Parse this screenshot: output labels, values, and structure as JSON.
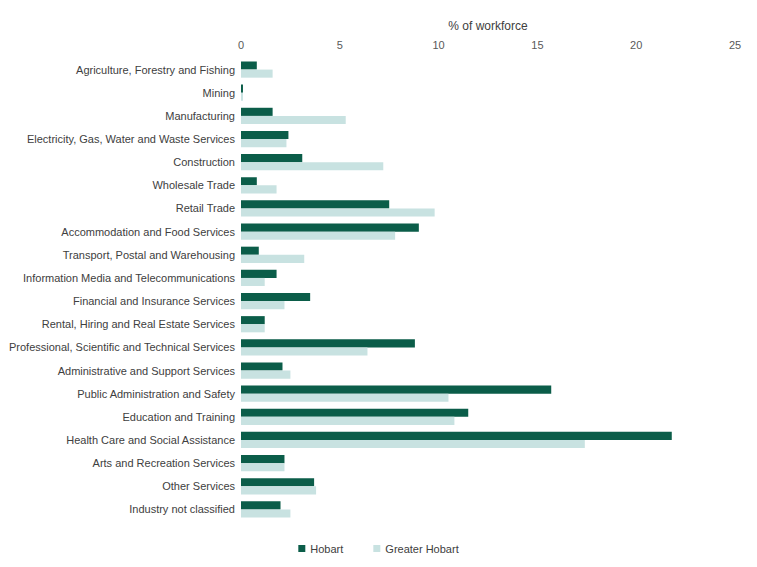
{
  "chart_data": {
    "type": "bar",
    "orientation": "horizontal",
    "x_label": "% of workforce",
    "categories": [
      "Agriculture, Forestry and Fishing",
      "Mining",
      "Manufacturing",
      "Electricity, Gas, Water and Waste Services",
      "Construction",
      "Wholesale Trade",
      "Retail Trade",
      "Accommodation and Food Services",
      "Transport, Postal and Warehousing",
      "Information Media and Telecommunications",
      "Financial and Insurance Services",
      "Rental, Hiring and Real Estate Services",
      "Professional, Scientific and Technical Services",
      "Administrative and Support Services",
      "Public Administration and Safety",
      "Education and Training",
      "Health Care and Social Assistance",
      "Arts and Recreation Services",
      "Other Services",
      "Industry not classified"
    ],
    "series": [
      {
        "name": "Hobart",
        "color": "#0b5d49",
        "values": [
          0.8,
          0.1,
          1.6,
          2.4,
          3.1,
          0.8,
          7.5,
          9.0,
          0.9,
          1.8,
          3.5,
          1.2,
          8.8,
          2.1,
          15.7,
          11.5,
          21.8,
          2.2,
          3.7,
          2.0
        ]
      },
      {
        "name": "Greater Hobart",
        "color": "#c8e2e1",
        "values": [
          1.6,
          0.1,
          5.3,
          2.3,
          7.2,
          1.8,
          9.8,
          7.8,
          3.2,
          1.2,
          2.2,
          1.2,
          6.4,
          2.5,
          10.5,
          10.8,
          17.4,
          2.2,
          3.8,
          2.5
        ]
      }
    ],
    "xlim": [
      0,
      25
    ],
    "xticks": [
      0,
      5,
      10,
      15,
      20,
      25
    ],
    "grid": false,
    "legend": "bottom"
  }
}
